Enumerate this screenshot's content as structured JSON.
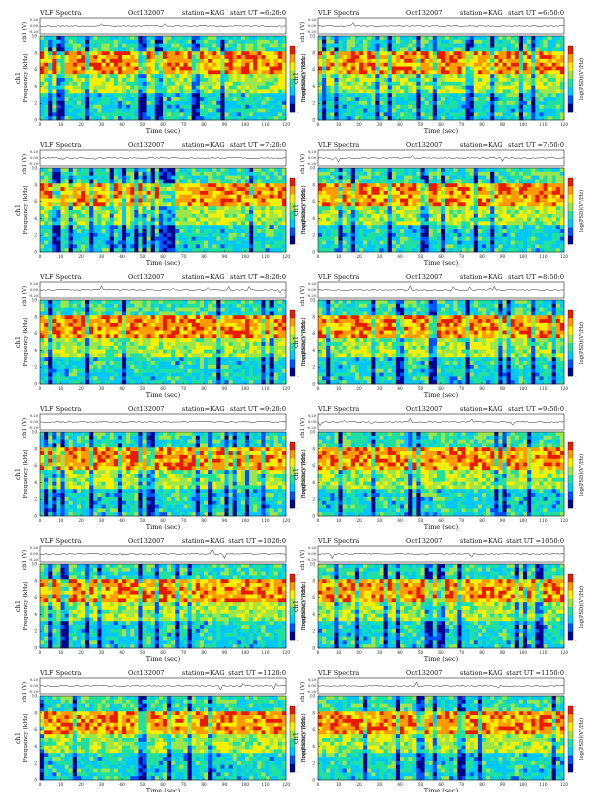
{
  "panels": [
    {
      "header": "VLF Spectra",
      "date": "Oct132007",
      "station": "station=KAG",
      "start": "start UT =6:20:0"
    },
    {
      "header": "VLF Spectra",
      "date": "Oct132007",
      "station": "station=KAG",
      "start": "start UT =6:50:0"
    },
    {
      "header": "VLF Spectra",
      "date": "Oct132007",
      "station": "station=KAG",
      "start": "start UT =7:20:0"
    },
    {
      "header": "VLF Spectra",
      "date": "Oct132007",
      "station": "station=KAG",
      "start": "start UT =7:50:0"
    },
    {
      "header": "VLF Spectra",
      "date": "Oct132007",
      "station": "station=KAG",
      "start": "start UT =8:20:0"
    },
    {
      "header": "VLF Spectra",
      "date": "Oct132007",
      "station": "station=KAG",
      "start": "start UT =8:50:0"
    },
    {
      "header": "VLF Spectra",
      "date": "Oct132007",
      "station": "station=KAG",
      "start": "start UT =9:20:0"
    },
    {
      "header": "VLF Spectra",
      "date": "Oct132007",
      "station": "station=KAG",
      "start": "start UT =9:50:0"
    },
    {
      "header": "VLF Spectra",
      "date": "Oct132007",
      "station": "station=KAG",
      "start": "start UT =1020:0"
    },
    {
      "header": "VLF Spectra",
      "date": "Oct132007",
      "station": "station=KAG",
      "start": "start UT =1050:0"
    },
    {
      "header": "VLF Spectra",
      "date": "Oct132007",
      "station": "station=KAG",
      "start": "start UT =1120:0"
    },
    {
      "header": "VLF Spectra",
      "date": "Oct132007",
      "station": "station=KAG",
      "start": "start UT =1150:0"
    }
  ],
  "labels": {
    "waveform_axis": "ch1 (V)",
    "freq_axis": "Frequency (kHz)",
    "ch_label": "ch1",
    "time_axis": "Time (sec)",
    "colorbar_label": "log(PSD)(V²/Hz)"
  },
  "waveform_ticks": [
    "0.20",
    "0.00",
    "-0.20"
  ],
  "freq_ticks": [
    "0",
    "2",
    "4",
    "6",
    "8",
    "10"
  ],
  "time_ticks": [
    "0",
    "10",
    "20",
    "30",
    "40",
    "50",
    "60",
    "70",
    "80",
    "90",
    "100",
    "110",
    "120"
  ],
  "colorbar_ticks": [
    "-",
    "-",
    "-"
  ],
  "colormap": [
    "#00008f",
    "#0050ff",
    "#00c8ff",
    "#20e0a0",
    "#9be64b",
    "#f5f000",
    "#ff9a00",
    "#e81b00"
  ]
}
